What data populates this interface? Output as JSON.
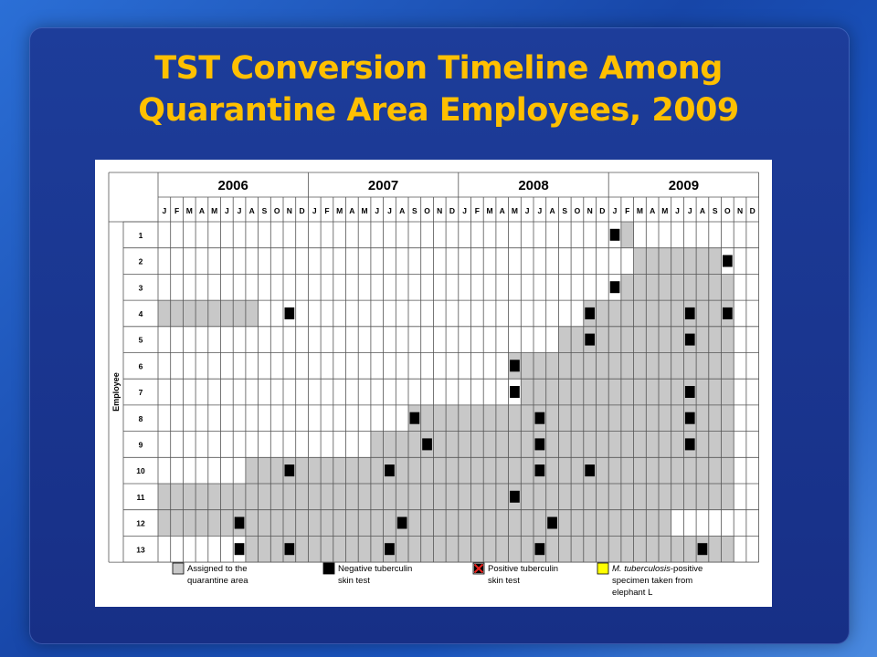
{
  "slide": {
    "title_line1": "TST Conversion Timeline Among",
    "title_line2": "Quarantine Area Employees, 2009",
    "colors": {
      "title": "#ffc000",
      "assigned": "#c8c8c8",
      "negative_test": "#000000",
      "positive_test": "#e8201c",
      "mtb_specimen": "#ffff00"
    }
  },
  "chart_data": {
    "type": "heatmap",
    "title": "",
    "ylabel": "Employee",
    "years": [
      "2006",
      "2007",
      "2008",
      "2009"
    ],
    "months": [
      "J",
      "F",
      "M",
      "A",
      "M",
      "J",
      "J",
      "A",
      "S",
      "O",
      "N",
      "D"
    ],
    "employees": [
      "1",
      "2",
      "3",
      "4",
      "5",
      "6",
      "7",
      "8",
      "9",
      "10",
      "11",
      "12",
      "13"
    ],
    "legend": [
      {
        "key": "assigned",
        "line1": "Assigned to the",
        "line2": "quarantine area",
        "line3": ""
      },
      {
        "key": "negative",
        "line1": "Negative tuberculin",
        "line2": "skin test",
        "line3": ""
      },
      {
        "key": "positive",
        "line1": "Positive tuberculin",
        "line2": "skin test",
        "line3": ""
      },
      {
        "key": "specimen",
        "line1_italic": "M. tuberculosis",
        "line1": "-positive",
        "line2": "specimen taken from",
        "line3": "elephant L"
      }
    ],
    "rows": [
      {
        "employee": "1",
        "assigned": [
          [
            37,
            37
          ]
        ],
        "negative": [
          36
        ]
      },
      {
        "employee": "2",
        "assigned": [
          [
            38,
            44
          ]
        ],
        "negative": [
          45
        ]
      },
      {
        "employee": "3",
        "assigned": [
          [
            37,
            45
          ]
        ],
        "negative": [
          36
        ]
      },
      {
        "employee": "4",
        "assigned": [
          [
            0,
            7
          ],
          [
            34,
            45
          ]
        ],
        "negative": [
          10,
          34,
          42,
          45
        ]
      },
      {
        "employee": "5",
        "assigned": [
          [
            32,
            45
          ]
        ],
        "negative": [
          34,
          42
        ]
      },
      {
        "employee": "6",
        "assigned": [
          [
            28,
            45
          ]
        ],
        "negative": [
          28
        ]
      },
      {
        "employee": "7",
        "assigned": [
          [
            29,
            45
          ]
        ],
        "negative": [
          28,
          42
        ]
      },
      {
        "employee": "8",
        "assigned": [
          [
            20,
            45
          ]
        ],
        "negative": [
          20,
          30,
          42
        ]
      },
      {
        "employee": "9",
        "assigned": [
          [
            17,
            45
          ]
        ],
        "negative": [
          21,
          30,
          42
        ]
      },
      {
        "employee": "10",
        "assigned": [
          [
            7,
            45
          ]
        ],
        "negative": [
          10,
          18,
          30,
          34
        ]
      },
      {
        "employee": "11",
        "assigned": [
          [
            0,
            45
          ]
        ],
        "negative": [
          28
        ]
      },
      {
        "employee": "12",
        "assigned": [
          [
            0,
            40
          ]
        ],
        "negative": [
          6,
          19,
          31
        ]
      },
      {
        "employee": "13",
        "assigned": [
          [
            7,
            45
          ]
        ],
        "negative": [
          6,
          10,
          18,
          30,
          43
        ]
      }
    ]
  }
}
